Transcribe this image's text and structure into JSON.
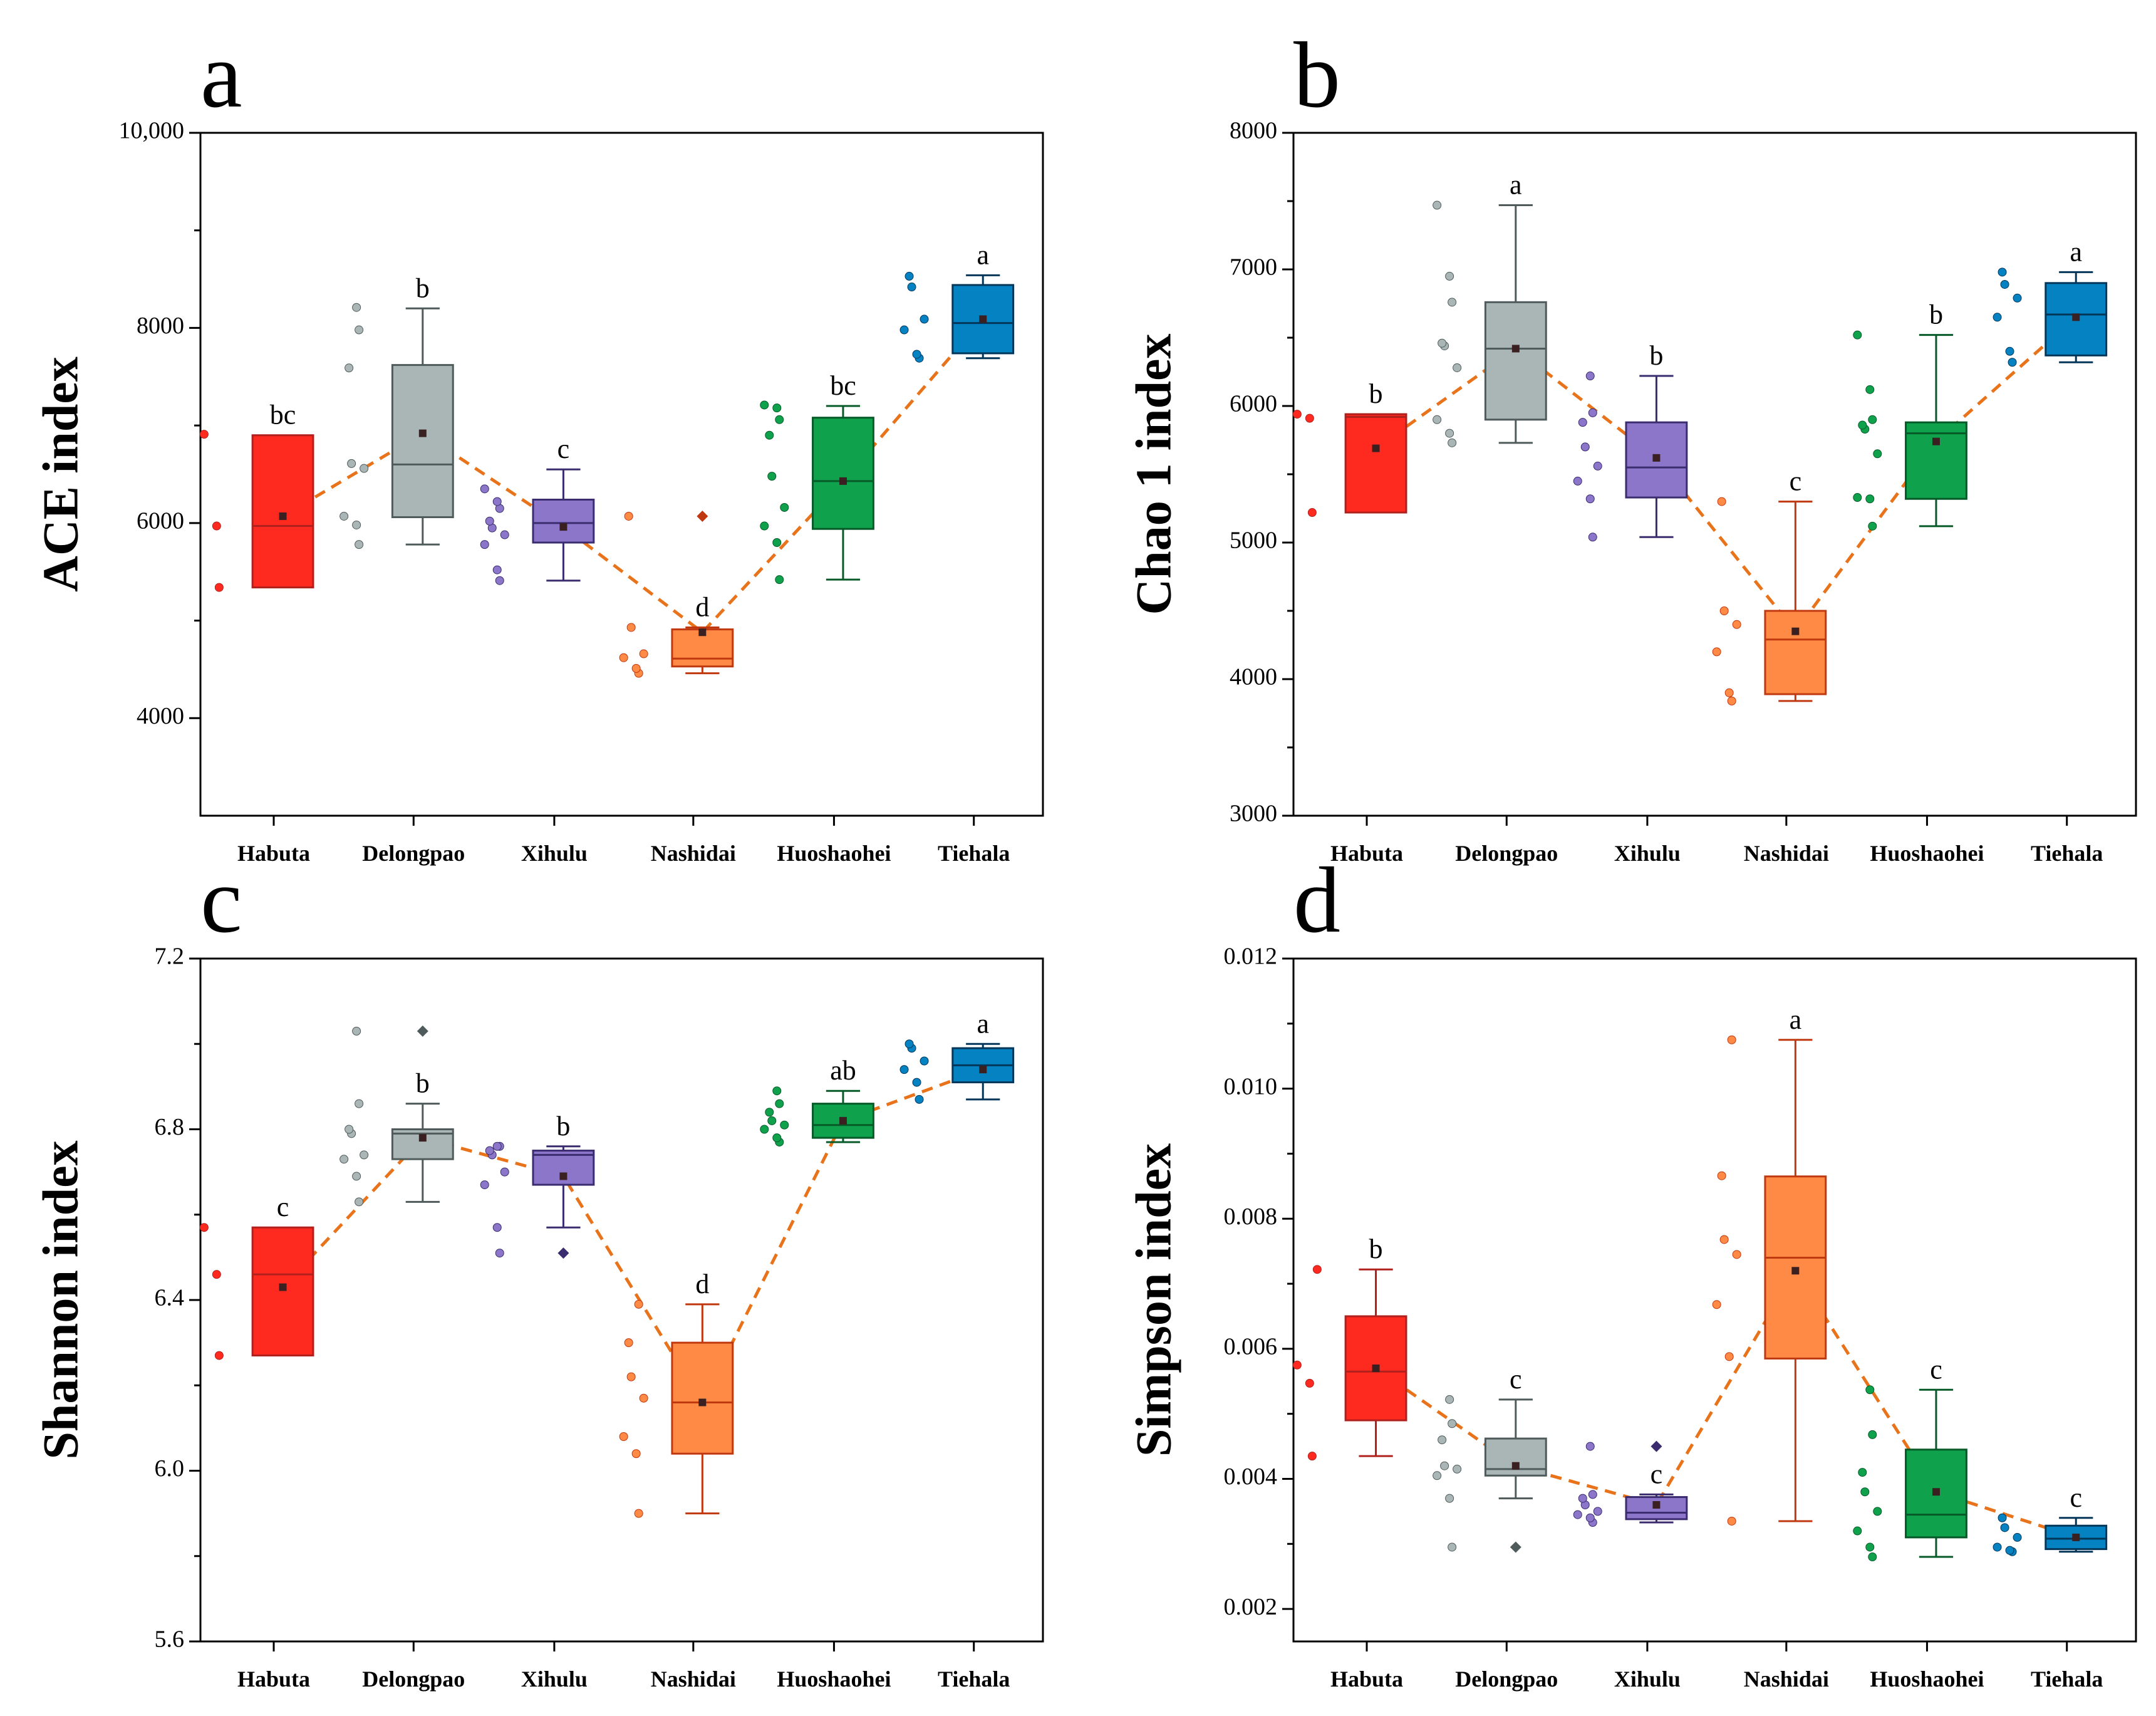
{
  "figure": {
    "group_colors": {
      "Habuta": "#ff2a1f",
      "Delongpao": "#aab5b5",
      "Xihulu": "#8b76c9",
      "Nashidai": "#ff8a45",
      "Huoshaohei": "#0fa14b",
      "Tiehala": "#0582c2"
    },
    "group_dark_colors": {
      "Habuta": "#b0201c",
      "Delongpao": "#4f5a5a",
      "Xihulu": "#3a2c6e",
      "Nashidai": "#c0380f",
      "Huoshaohei": "#065a28",
      "Tiehala": "#04365a"
    },
    "mean_line_color": "#e8731a"
  },
  "chart_data": [
    {
      "panel": "a",
      "type": "box",
      "ylabel": "ACE index",
      "ylim": [
        3000,
        10000
      ],
      "yticks": [
        4000,
        6000,
        8000,
        10000
      ],
      "ytick_labels": [
        "4000",
        "6000",
        "8000",
        "10,000"
      ],
      "categories": [
        "Habuta",
        "Delongpao",
        "Xihulu",
        "Nashidai",
        "Huoshaohei",
        "Tiehala"
      ],
      "boxes": [
        {
          "q1": 5340,
          "median": 5970,
          "q3": 6900,
          "whisker_low": null,
          "whisker_high": null,
          "mean": 6070,
          "letter": "bc",
          "points": [
            5340,
            5970,
            6910
          ],
          "outliers": []
        },
        {
          "q1": 6060,
          "median": 6600,
          "q3": 7620,
          "whisker_low": 5780,
          "whisker_high": 8200,
          "mean": 6920,
          "letter": "b",
          "points": [
            5780,
            5980,
            6070,
            6560,
            6610,
            7590,
            7980,
            8210
          ],
          "outliers": []
        },
        {
          "q1": 5800,
          "median": 6000,
          "q3": 6240,
          "whisker_low": 5410,
          "whisker_high": 6550,
          "mean": 5960,
          "letter": "c",
          "points": [
            5410,
            5520,
            5780,
            5880,
            5950,
            6020,
            6150,
            6220,
            6350
          ],
          "outliers": []
        },
        {
          "q1": 4530,
          "median": 4610,
          "q3": 4910,
          "whisker_low": 4460,
          "whisker_high": 4930,
          "mean": 4880,
          "letter": "d",
          "points": [
            4460,
            4510,
            4620,
            4660,
            4930,
            6070
          ],
          "outliers": [
            6070
          ]
        },
        {
          "q1": 5940,
          "median": 6430,
          "q3": 7080,
          "whisker_low": 5420,
          "whisker_high": 7200,
          "mean": 6430,
          "letter": "bc",
          "points": [
            5420,
            5800,
            5970,
            6160,
            6480,
            6900,
            7060,
            7180,
            7210
          ],
          "outliers": []
        },
        {
          "q1": 7740,
          "median": 8050,
          "q3": 8440,
          "whisker_low": 7690,
          "whisker_high": 8540,
          "mean": 8090,
          "letter": "a",
          "points": [
            7690,
            7730,
            7980,
            8090,
            8420,
            8530
          ],
          "outliers": []
        }
      ],
      "mean_line": true
    },
    {
      "panel": "b",
      "type": "box",
      "ylabel": "Chao 1 index",
      "ylim": [
        3000,
        8000
      ],
      "yticks": [
        3000,
        4000,
        5000,
        6000,
        7000,
        8000
      ],
      "ytick_labels": [
        "3000",
        "4000",
        "5000",
        "6000",
        "7000",
        "8000"
      ],
      "categories": [
        "Habuta",
        "Delongpao",
        "Xihulu",
        "Nashidai",
        "Huoshaohei",
        "Tiehala"
      ],
      "boxes": [
        {
          "q1": 5220,
          "median": 5920,
          "q3": 5940,
          "whisker_low": null,
          "whisker_high": null,
          "mean": 5690,
          "letter": "b",
          "points": [
            5220,
            5910,
            5940
          ],
          "outliers": []
        },
        {
          "q1": 5900,
          "median": 6420,
          "q3": 6760,
          "whisker_low": 5730,
          "whisker_high": 7470,
          "mean": 6420,
          "letter": "a",
          "points": [
            5730,
            5800,
            5900,
            6280,
            6440,
            6460,
            6760,
            6950,
            7470
          ],
          "outliers": []
        },
        {
          "q1": 5330,
          "median": 5550,
          "q3": 5880,
          "whisker_low": 5040,
          "whisker_high": 6220,
          "mean": 5620,
          "letter": "b",
          "points": [
            5040,
            5320,
            5450,
            5560,
            5700,
            5880,
            5950,
            6220
          ],
          "outliers": []
        },
        {
          "q1": 3890,
          "median": 4290,
          "q3": 4500,
          "whisker_low": 3840,
          "whisker_high": 5300,
          "mean": 4350,
          "letter": "c",
          "points": [
            3840,
            3900,
            4200,
            4400,
            4500,
            5300
          ],
          "outliers": []
        },
        {
          "q1": 5320,
          "median": 5800,
          "q3": 5880,
          "whisker_low": 5120,
          "whisker_high": 6520,
          "mean": 5740,
          "letter": "b",
          "points": [
            5120,
            5320,
            5330,
            5650,
            5830,
            5860,
            5900,
            6120,
            6520
          ],
          "outliers": []
        },
        {
          "q1": 6370,
          "median": 6670,
          "q3": 6900,
          "whisker_low": 6320,
          "whisker_high": 6980,
          "mean": 6650,
          "letter": "a",
          "points": [
            6320,
            6400,
            6650,
            6790,
            6890,
            6980
          ],
          "outliers": []
        }
      ],
      "mean_line": true
    },
    {
      "panel": "c",
      "type": "box",
      "ylabel": "Shannon index",
      "ylim": [
        5.6,
        7.2
      ],
      "yticks": [
        5.6,
        6.0,
        6.4,
        6.8,
        7.2
      ],
      "ytick_labels": [
        "5.6",
        "6.0",
        "6.4",
        "6.8",
        "7.2"
      ],
      "categories": [
        "Habuta",
        "Delongpao",
        "Xihulu",
        "Nashidai",
        "Huoshaohei",
        "Tiehala"
      ],
      "boxes": [
        {
          "q1": 6.27,
          "median": 6.46,
          "q3": 6.57,
          "whisker_low": null,
          "whisker_high": null,
          "mean": 6.43,
          "letter": "c",
          "points": [
            6.27,
            6.46,
            6.57
          ],
          "outliers": []
        },
        {
          "q1": 6.73,
          "median": 6.79,
          "q3": 6.8,
          "whisker_low": 6.63,
          "whisker_high": 6.86,
          "mean": 6.78,
          "letter": "b",
          "points": [
            6.63,
            6.69,
            6.73,
            6.74,
            6.79,
            6.8,
            6.86,
            7.03
          ],
          "outliers": [
            7.03
          ]
        },
        {
          "q1": 6.67,
          "median": 6.74,
          "q3": 6.75,
          "whisker_low": 6.57,
          "whisker_high": 6.76,
          "mean": 6.69,
          "letter": "b",
          "points": [
            6.51,
            6.57,
            6.67,
            6.7,
            6.74,
            6.75,
            6.76,
            6.76
          ],
          "outliers": [
            6.51
          ]
        },
        {
          "q1": 6.04,
          "median": 6.16,
          "q3": 6.3,
          "whisker_low": 5.9,
          "whisker_high": 6.39,
          "mean": 6.16,
          "letter": "d",
          "points": [
            5.9,
            6.04,
            6.08,
            6.17,
            6.22,
            6.3,
            6.39
          ],
          "outliers": []
        },
        {
          "q1": 6.78,
          "median": 6.81,
          "q3": 6.86,
          "whisker_low": 6.77,
          "whisker_high": 6.89,
          "mean": 6.82,
          "letter": "ab",
          "points": [
            6.77,
            6.78,
            6.8,
            6.81,
            6.82,
            6.84,
            6.86,
            6.89
          ],
          "outliers": []
        },
        {
          "q1": 6.91,
          "median": 6.95,
          "q3": 6.99,
          "whisker_low": 6.87,
          "whisker_high": 7.0,
          "mean": 6.94,
          "letter": "a",
          "points": [
            6.87,
            6.91,
            6.94,
            6.96,
            6.99,
            7.0
          ],
          "outliers": []
        }
      ],
      "mean_line": true
    },
    {
      "panel": "d",
      "type": "box",
      "ylabel": "Simpson index",
      "ylim": [
        0.0015,
        0.012
      ],
      "yticks": [
        0.002,
        0.004,
        0.006,
        0.008,
        0.01,
        0.012
      ],
      "ytick_labels": [
        "0.002",
        "0.004",
        "0.006",
        "0.008",
        "0.010",
        "0.012"
      ],
      "categories": [
        "Habuta",
        "Delongpao",
        "Xihulu",
        "Nashidai",
        "Huoshaohei",
        "Tiehala"
      ],
      "boxes": [
        {
          "q1": 0.0049,
          "median": 0.00565,
          "q3": 0.0065,
          "whisker_low": 0.00435,
          "whisker_high": 0.00722,
          "mean": 0.0057,
          "letter": "b",
          "points": [
            0.00435,
            0.00547,
            0.00575,
            0.00722
          ],
          "outliers": []
        },
        {
          "q1": 0.00405,
          "median": 0.00415,
          "q3": 0.00462,
          "whisker_low": 0.0037,
          "whisker_high": 0.00522,
          "mean": 0.0042,
          "letter": "c",
          "points": [
            0.00295,
            0.0037,
            0.00405,
            0.00415,
            0.0042,
            0.0046,
            0.00485,
            0.00522
          ],
          "outliers": [
            0.00295
          ]
        },
        {
          "q1": 0.00338,
          "median": 0.00348,
          "q3": 0.00372,
          "whisker_low": 0.00333,
          "whisker_high": 0.00376,
          "mean": 0.0036,
          "letter": "c",
          "points": [
            0.00333,
            0.0034,
            0.00345,
            0.0035,
            0.0036,
            0.0037,
            0.00376,
            0.0045
          ],
          "outliers": [
            0.0045
          ]
        },
        {
          "q1": 0.00585,
          "median": 0.0074,
          "q3": 0.00865,
          "whisker_low": 0.00335,
          "whisker_high": 0.01075,
          "mean": 0.0072,
          "letter": "a",
          "points": [
            0.00335,
            0.00588,
            0.00668,
            0.00745,
            0.00768,
            0.00866,
            0.01075
          ],
          "outliers": []
        },
        {
          "q1": 0.0031,
          "median": 0.00345,
          "q3": 0.00445,
          "whisker_low": 0.0028,
          "whisker_high": 0.00537,
          "mean": 0.0038,
          "letter": "c",
          "points": [
            0.0028,
            0.00295,
            0.0032,
            0.0035,
            0.0038,
            0.0041,
            0.00468,
            0.00537
          ],
          "outliers": []
        },
        {
          "q1": 0.00292,
          "median": 0.00308,
          "q3": 0.00328,
          "whisker_low": 0.00288,
          "whisker_high": 0.0034,
          "mean": 0.0031,
          "letter": "c",
          "points": [
            0.00288,
            0.0029,
            0.00295,
            0.0031,
            0.00325,
            0.0034
          ],
          "outliers": []
        }
      ],
      "mean_line": true
    }
  ]
}
